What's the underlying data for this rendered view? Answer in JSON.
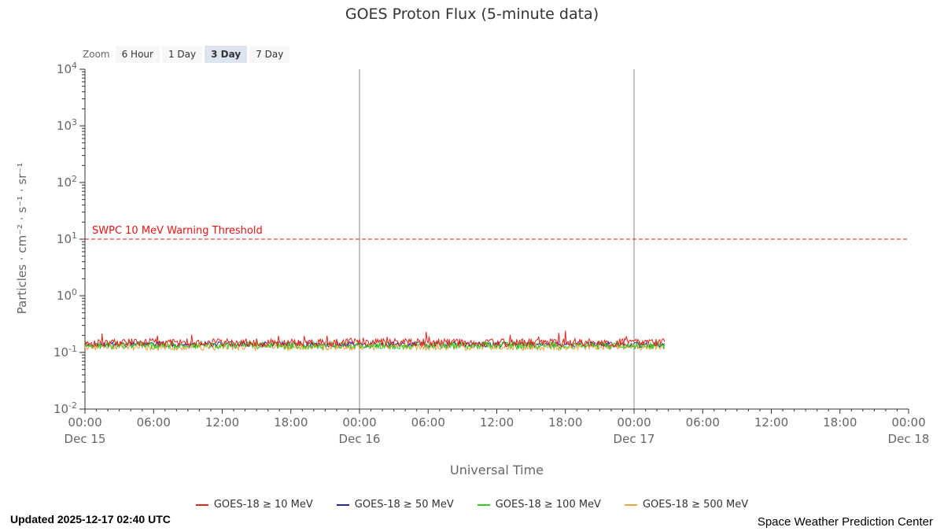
{
  "toolbar": {
    "zoom_label": "Zoom",
    "buttons": [
      {
        "label": "6 Hour",
        "selected": false
      },
      {
        "label": "1 Day",
        "selected": false
      },
      {
        "label": "3 Day",
        "selected": true
      },
      {
        "label": "7 Day",
        "selected": false
      }
    ]
  },
  "chart_data": {
    "type": "line",
    "title": "GOES Proton Flux (5-minute data)",
    "xlabel": "Universal Time",
    "ylabel": "Particles · cm⁻² · s⁻¹ · sr⁻¹",
    "y_scale": "log",
    "ylim": [
      0.01,
      10000
    ],
    "y_tick_exponents": [
      4,
      3,
      2,
      1,
      0,
      -1,
      -2
    ],
    "x_hours_range": [
      0,
      72
    ],
    "x_ticks": [
      {
        "hour": 0,
        "label": "00:00"
      },
      {
        "hour": 6,
        "label": "06:00"
      },
      {
        "hour": 12,
        "label": "12:00"
      },
      {
        "hour": 18,
        "label": "18:00"
      },
      {
        "hour": 24,
        "label": "00:00"
      },
      {
        "hour": 30,
        "label": "06:00"
      },
      {
        "hour": 36,
        "label": "12:00"
      },
      {
        "hour": 42,
        "label": "18:00"
      },
      {
        "hour": 48,
        "label": "00:00"
      },
      {
        "hour": 54,
        "label": "06:00"
      },
      {
        "hour": 60,
        "label": "12:00"
      },
      {
        "hour": 66,
        "label": "18:00"
      },
      {
        "hour": 72,
        "label": "00:00"
      }
    ],
    "x_date_labels": [
      {
        "hour": 0,
        "label": "Dec 15"
      },
      {
        "hour": 24,
        "label": "Dec 16"
      },
      {
        "hour": 48,
        "label": "Dec 17"
      },
      {
        "hour": 72,
        "label": "Dec 18"
      }
    ],
    "x_gridlines_hours": [
      24,
      48
    ],
    "threshold": {
      "value": 10,
      "label": "SWPC 10 MeV Warning Threshold",
      "color": "#ee1111",
      "style": "dashed"
    },
    "sample_interval_minutes": 5,
    "data_end_hour": 50.7,
    "legend_position": "bottom",
    "series": [
      {
        "name": "GOES-18 ≥ 10 MeV",
        "color": "#e1251b",
        "baseline_flux": 0.15,
        "noise_decades": 0.07,
        "spike_probability": 0.03,
        "spike_decades": 0.2,
        "seed": 101
      },
      {
        "name": "GOES-18 ≥ 50 MeV",
        "color": "#2c2598",
        "baseline_flux": 0.138,
        "noise_decades": 0.05,
        "spike_probability": 0,
        "spike_decades": 0,
        "seed": 202
      },
      {
        "name": "GOES-18 ≥ 100 MeV",
        "color": "#33cc22",
        "baseline_flux": 0.133,
        "noise_decades": 0.065,
        "spike_probability": 0,
        "spike_decades": 0,
        "seed": 303
      },
      {
        "name": "GOES-18 ≥ 500 MeV",
        "color": "#e8a33c",
        "baseline_flux": 0.125,
        "noise_decades": 0.06,
        "spike_probability": 0,
        "spike_decades": 0,
        "seed": 404
      }
    ]
  },
  "footer": {
    "updated": "Updated 2025-12-17 02:40 UTC",
    "source": "Space Weather Prediction Center"
  }
}
